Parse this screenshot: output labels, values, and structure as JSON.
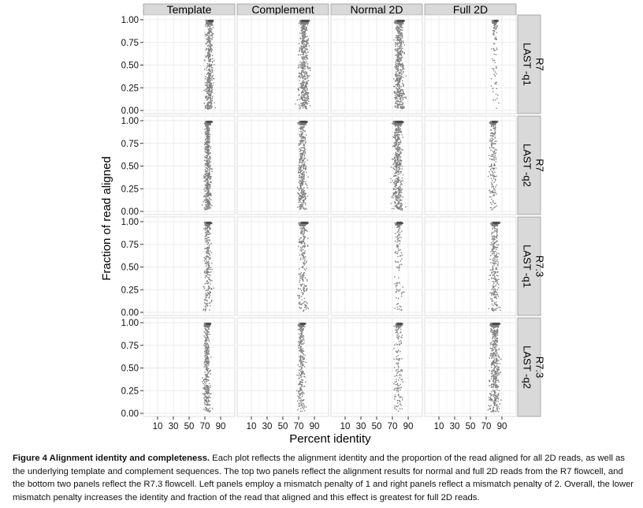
{
  "chart_data": {
    "type": "scatter",
    "xlabel": "Percent identity",
    "ylabel": "Fraction of read aligned",
    "x_ticks": [
      10,
      30,
      50,
      70,
      90
    ],
    "y_ticks": [
      "0.00",
      "0.25",
      "0.50",
      "0.75",
      "1.00"
    ],
    "xlim": [
      0,
      100
    ],
    "ylim": [
      0,
      1
    ],
    "grid": true,
    "col_facets": [
      "Template",
      "Complement",
      "Normal 2D",
      "Full 2D"
    ],
    "row_facets": [
      [
        "LAST -q1",
        "R7"
      ],
      [
        "LAST -q2",
        "R7"
      ],
      [
        "LAST -q1",
        "R7.3"
      ],
      [
        "LAST -q2",
        "R7.3"
      ]
    ],
    "panels": [
      [
        {
          "center": 75,
          "spread": 3.5,
          "density": 0.8,
          "low_tail": 0.9
        },
        {
          "center": 76,
          "spread": 4.5,
          "density": 0.9,
          "low_tail": 1.0
        },
        {
          "center": 78,
          "spread": 4.5,
          "density": 0.9,
          "low_tail": 1.0
        },
        {
          "center": 80,
          "spread": 3.0,
          "density": 0.15,
          "low_tail": 0.3
        }
      ],
      [
        {
          "center": 73,
          "spread": 3.0,
          "density": 0.9,
          "low_tail": 1.0
        },
        {
          "center": 74,
          "spread": 4.0,
          "density": 0.7,
          "low_tail": 1.0
        },
        {
          "center": 76,
          "spread": 4.5,
          "density": 0.9,
          "low_tail": 1.0
        },
        {
          "center": 78,
          "spread": 3.5,
          "density": 0.35,
          "low_tail": 0.7
        }
      ],
      [
        {
          "center": 73,
          "spread": 3.5,
          "density": 0.45,
          "low_tail": 0.6
        },
        {
          "center": 75,
          "spread": 4.5,
          "density": 0.4,
          "low_tail": 0.7
        },
        {
          "center": 77,
          "spread": 4.0,
          "density": 0.2,
          "low_tail": 0.4
        },
        {
          "center": 80,
          "spread": 4.0,
          "density": 0.5,
          "low_tail": 0.8
        }
      ],
      [
        {
          "center": 72,
          "spread": 3.0,
          "density": 0.6,
          "low_tail": 0.9
        },
        {
          "center": 73,
          "spread": 3.5,
          "density": 0.45,
          "low_tail": 0.9
        },
        {
          "center": 77,
          "spread": 4.0,
          "density": 0.25,
          "low_tail": 0.7
        },
        {
          "center": 80,
          "spread": 4.5,
          "density": 0.8,
          "low_tail": 0.9
        }
      ]
    ],
    "point_color": "#7f7f7f",
    "strip_color": "#d9d9d9",
    "panel_bg": "#ffffff",
    "grid_color": "#ebebeb"
  },
  "caption": {
    "title": "Figure 4 Alignment identity and completeness.",
    "text": " Each plot reflects the alignment identity and the proportion of the read aligned for all 2D reads, as well as the underlying template and complement sequences. The top two panels reflect the alignment results for normal and full 2D reads from the R7 flowcell, and the bottom two panels reflect the R7.3 flowcell. Left panels employ a mismatch penalty of 1 and right panels reflect a mismatch penalty of 2. Overall, the lower mismatch penalty increases the identity and fraction of the read that aligned and this effect is greatest for full 2D reads."
  }
}
